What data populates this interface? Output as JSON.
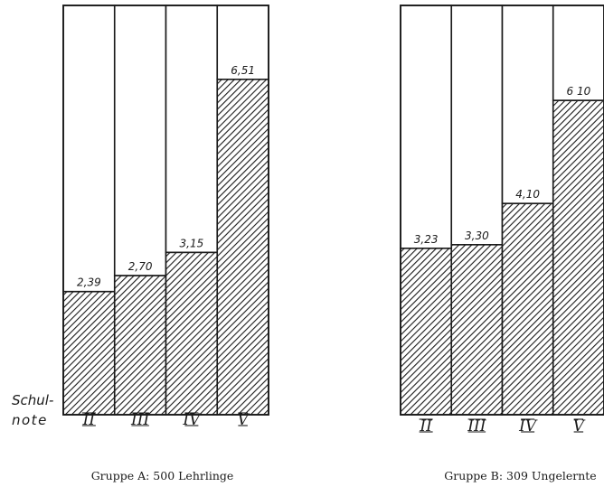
{
  "chart_data": [
    {
      "type": "bar",
      "categories": [
        "II",
        "III",
        "IV",
        "V"
      ],
      "values": [
        2.39,
        2.7,
        3.15,
        6.51
      ],
      "value_labels": [
        "2,39",
        "2,70",
        "3,15",
        "6,51"
      ],
      "title": "Gruppe A: 500 Lehrlinge",
      "axis_label": "Schul-note",
      "axis_label_lines": [
        "Schul-",
        "note"
      ]
    },
    {
      "type": "bar",
      "categories": [
        "II",
        "III",
        "IV",
        "V"
      ],
      "values": [
        3.23,
        3.3,
        4.1,
        6.1
      ],
      "value_labels": [
        "3,23",
        "3,30",
        "4,10",
        "6 10"
      ],
      "title": "Gruppe B: 309 Ungelernte"
    }
  ],
  "colors": {
    "ink": "#1a1a1a",
    "paper": "#ffffff"
  }
}
